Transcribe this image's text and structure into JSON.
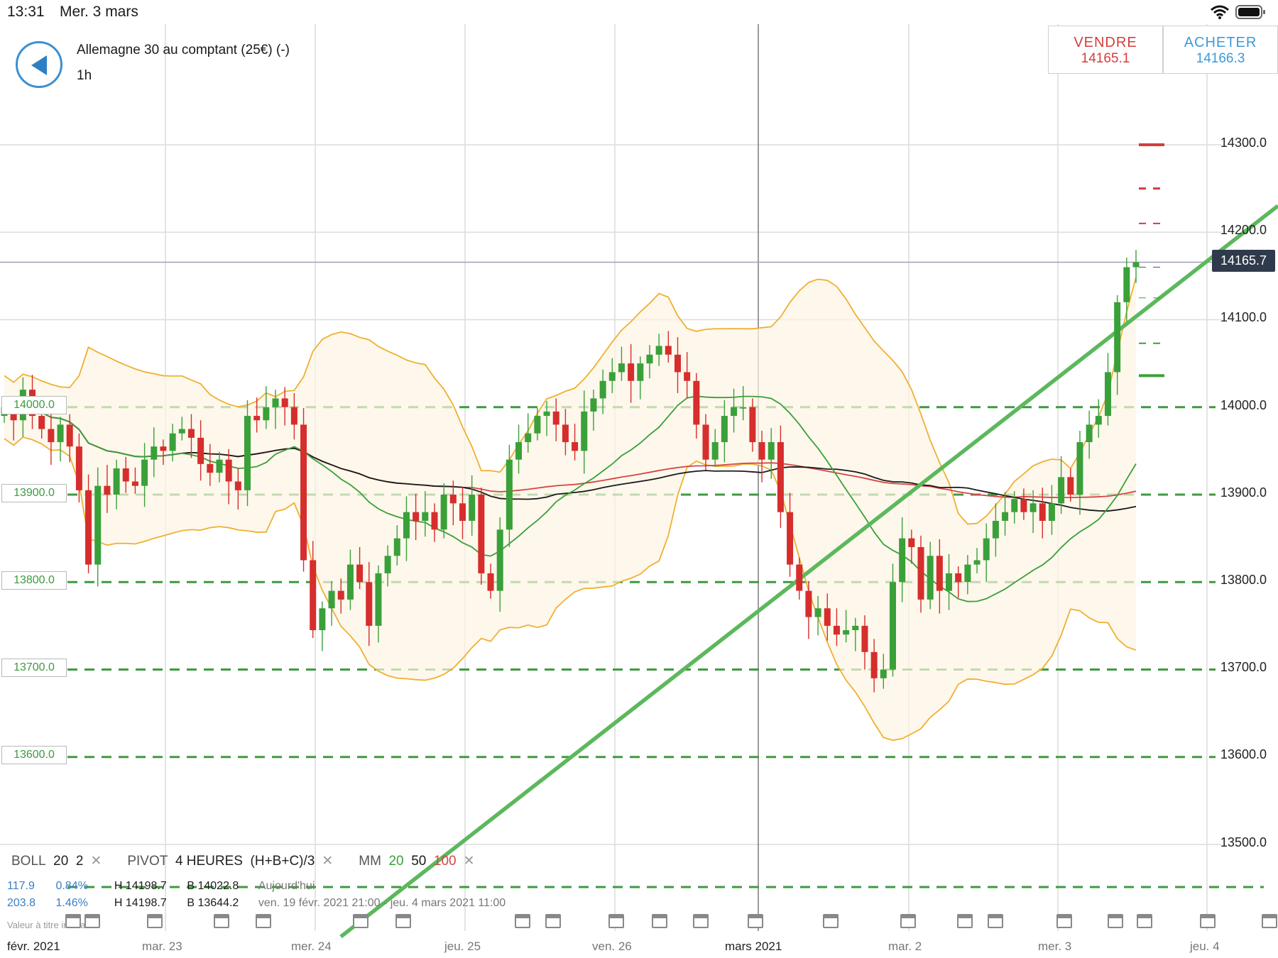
{
  "status_bar": {
    "time": "13:31",
    "date": "Mer. 3 mars"
  },
  "header": {
    "instrument": "Allemagne 30 au comptant (25€) (-)",
    "timeframe": "1h",
    "sell": {
      "label": "VENDRE",
      "price": "14165.1"
    },
    "buy": {
      "label": "ACHETER",
      "price": "14166.3"
    }
  },
  "indicators": {
    "boll": {
      "name": "BOLL",
      "period": "20",
      "dev": "2"
    },
    "pivot": {
      "name": "PIVOT",
      "interval": "4 HEURES",
      "formula": "(H+B+C)/3"
    },
    "mm": {
      "name": "MM",
      "p1": "20",
      "p2": "50",
      "p3": "100"
    }
  },
  "stats": {
    "today": {
      "range": "117.9",
      "pct": "0.84%",
      "high": "H 14198.7",
      "low": "B 14022.8",
      "label": "Aujourd'hui"
    },
    "period": {
      "range": "203.8",
      "pct": "1.46%",
      "high": "H 14198.7",
      "low": "B 13644.2",
      "label": "ven. 19 févr. 2021 21:00 - jeu. 4 mars 2021 11:00"
    }
  },
  "footer_note": "Valeur à titre indicatif",
  "x_axis_labels": [
    "févr. 2021",
    "mar. 23",
    "mer. 24",
    "jeu. 25",
    "ven. 26",
    "mars 2021",
    "mar. 2",
    "mer. 3",
    "jeu. 4"
  ],
  "y_axis_labels": [
    "14300.0",
    "14200.0",
    "14100.0",
    "14000.0",
    "13900.0",
    "13800.0",
    "13700.0",
    "13600.0",
    "13500.0"
  ],
  "level_boxes": [
    "14000.0",
    "13900.0",
    "13800.0",
    "13700.0",
    "13600.0"
  ],
  "current_price": "14165.7",
  "colors": {
    "bull": "#3aa03a",
    "bear": "#d62d2d",
    "boll": "#f0b030",
    "ma20": "#3aa03a",
    "ma50": "#1a1a1a",
    "ma100": "#d64545",
    "trend": "#5cb85c",
    "sell": "#d63c3c",
    "buy": "#3a9bd6"
  },
  "chart_data": {
    "type": "candlestick",
    "y_range": [
      13460,
      14340
    ],
    "series_count_hourly": 122,
    "price_last": 14165.7,
    "candles_close": [
      14000,
      13985,
      14020,
      13990,
      13975,
      13960,
      13980,
      13955,
      13905,
      13820,
      13910,
      13900,
      13930,
      13915,
      13910,
      13940,
      13955,
      13950,
      13970,
      13975,
      13965,
      13935,
      13925,
      13940,
      13915,
      13905,
      13990,
      13985,
      14000,
      14010,
      14000,
      13980,
      13825,
      13745,
      13770,
      13790,
      13780,
      13820,
      13800,
      13750,
      13810,
      13830,
      13850,
      13880,
      13870,
      13880,
      13860,
      13900,
      13890,
      13870,
      13900,
      13810,
      13790,
      13860,
      13940,
      13960,
      13970,
      13990,
      13995,
      13980,
      13960,
      13950,
      13995,
      14010,
      14030,
      14040,
      14050,
      14030,
      14050,
      14060,
      14070,
      14060,
      14040,
      14030,
      13980,
      13940,
      13960,
      13990,
      14000,
      14000,
      13960,
      13940,
      13960,
      13880,
      13820,
      13790,
      13760,
      13770,
      13750,
      13740,
      13745,
      13750,
      13720,
      13690,
      13700,
      13800,
      13850,
      13840,
      13780,
      13830,
      13790,
      13810,
      13800,
      13820,
      13825,
      13850,
      13870,
      13880,
      13895,
      13880,
      13890,
      13870,
      13890,
      13920,
      13900,
      13960,
      13980,
      13990,
      14040,
      14120,
      14160,
      14165.7
    ],
    "bollinger": {
      "period": 20,
      "dev": 2
    },
    "moving_averages": [
      20,
      50,
      100
    ],
    "pivot_levels": [
      14000,
      13900,
      13800,
      13700,
      13600
    ],
    "trendline": "rising support"
  }
}
